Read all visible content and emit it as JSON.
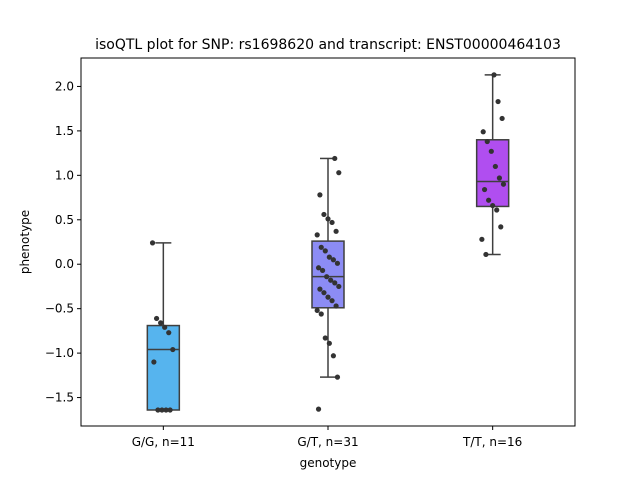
{
  "chart_data": {
    "type": "box",
    "title": "isoQTL plot for SNP: rs1698620 and transcript: ENST00000464103",
    "xlabel": "genotype",
    "ylabel": "phenotype",
    "ylim": [
      -1.82,
      2.32
    ],
    "yticks": [
      -1.5,
      -1.0,
      -0.5,
      0.0,
      0.5,
      1.0,
      1.5,
      2.0
    ],
    "ytick_labels": [
      "−1.5",
      "−1.0",
      "−0.5",
      "0.0",
      "0.5",
      "1.0",
      "1.5",
      "2.0"
    ],
    "grid": false,
    "legend": "none",
    "categories": [
      "G/G, n=11",
      "G/T, n=31",
      "T/T, n=16"
    ],
    "boxes": [
      {
        "category": "G/G, n=11",
        "color": "#56b4ee",
        "whisker_low": -1.64,
        "q1": -1.64,
        "median": -0.96,
        "q3": -0.69,
        "whisker_high": 0.24,
        "points": [
          0.24,
          -0.61,
          -0.66,
          -0.71,
          -0.77,
          -0.96,
          -1.1,
          -1.64,
          -1.64,
          -1.64,
          -1.64
        ]
      },
      {
        "category": "G/T, n=31",
        "color": "#8c8cf5",
        "whisker_low": -1.27,
        "q1": -0.49,
        "median": -0.14,
        "q3": 0.26,
        "whisker_high": 1.19,
        "points": [
          1.19,
          1.03,
          0.78,
          0.56,
          0.51,
          0.47,
          0.37,
          0.33,
          0.19,
          0.15,
          0.08,
          0.05,
          0.01,
          -0.04,
          -0.07,
          -0.14,
          -0.18,
          -0.21,
          -0.25,
          -0.28,
          -0.32,
          -0.37,
          -0.41,
          -0.47,
          -0.52,
          -0.56,
          -0.83,
          -0.89,
          -1.03,
          -1.27,
          -1.63
        ]
      },
      {
        "category": "T/T, n=16",
        "color": "#b04ef0",
        "whisker_low": 0.11,
        "q1": 0.65,
        "median": 0.93,
        "q3": 1.4,
        "whisker_high": 2.13,
        "points": [
          2.13,
          1.83,
          1.64,
          1.49,
          1.38,
          1.27,
          1.1,
          0.97,
          0.9,
          0.84,
          0.72,
          0.66,
          0.61,
          0.42,
          0.28,
          0.11
        ]
      }
    ]
  }
}
